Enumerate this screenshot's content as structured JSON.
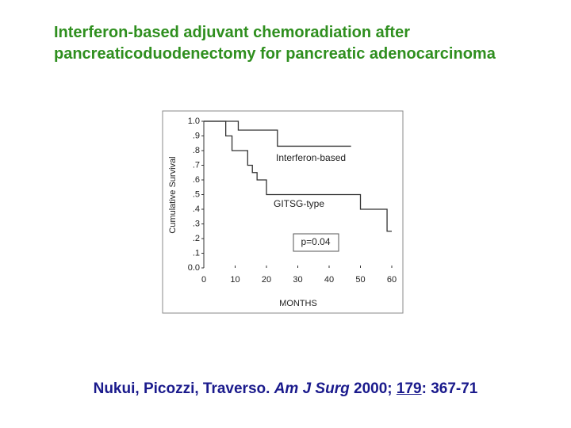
{
  "chart_data": {
    "type": "step",
    "title": "Interferon-based adjuvant chemoradiation after pancreaticoduodenectomy for pancreatic adenocarcinoma",
    "x_label": "MONTHS",
    "y_label": "Cumulative Survival",
    "xlim": [
      0,
      60
    ],
    "xticks": [
      0,
      10,
      20,
      30,
      40,
      50,
      60
    ],
    "ylim": [
      0,
      1
    ],
    "yticks": [
      {
        "value": 0,
        "label": "0.0"
      },
      {
        "value": 0.1,
        "label": ".1"
      },
      {
        "value": 0.2,
        "label": ".2"
      },
      {
        "value": 0.3,
        "label": ".3"
      },
      {
        "value": 0.4,
        "label": ".4"
      },
      {
        "value": 0.5,
        "label": ".5"
      },
      {
        "value": 0.6,
        "label": ".6"
      },
      {
        "value": 0.7,
        "label": ".7"
      },
      {
        "value": 0.8,
        "label": ".8"
      },
      {
        "value": 0.9,
        "label": ".9"
      },
      {
        "value": 1,
        "label": "1.0"
      }
    ],
    "series": [
      {
        "name": "Interferon-based",
        "color": "#333333",
        "x": [
          0,
          11,
          23.5,
          47
        ],
        "values": [
          1,
          0.94,
          0.83,
          0.83
        ]
      },
      {
        "name": "GITSG-type",
        "color": "#333333",
        "x": [
          0,
          7,
          9,
          14,
          15.5,
          17,
          20,
          50,
          58.5,
          60
        ],
        "values": [
          1,
          0.9,
          0.8,
          0.7,
          0.65,
          0.6,
          0.5,
          0.4,
          0.25,
          0.25
        ]
      }
    ],
    "annotations": [
      "p=0.04"
    ]
  },
  "citation": {
    "authors": "Nukui, Picozzi, Traverso.",
    "journal": "Am J Surg",
    "year": "2000;",
    "volume": "179",
    "pages": ": 367-71"
  }
}
